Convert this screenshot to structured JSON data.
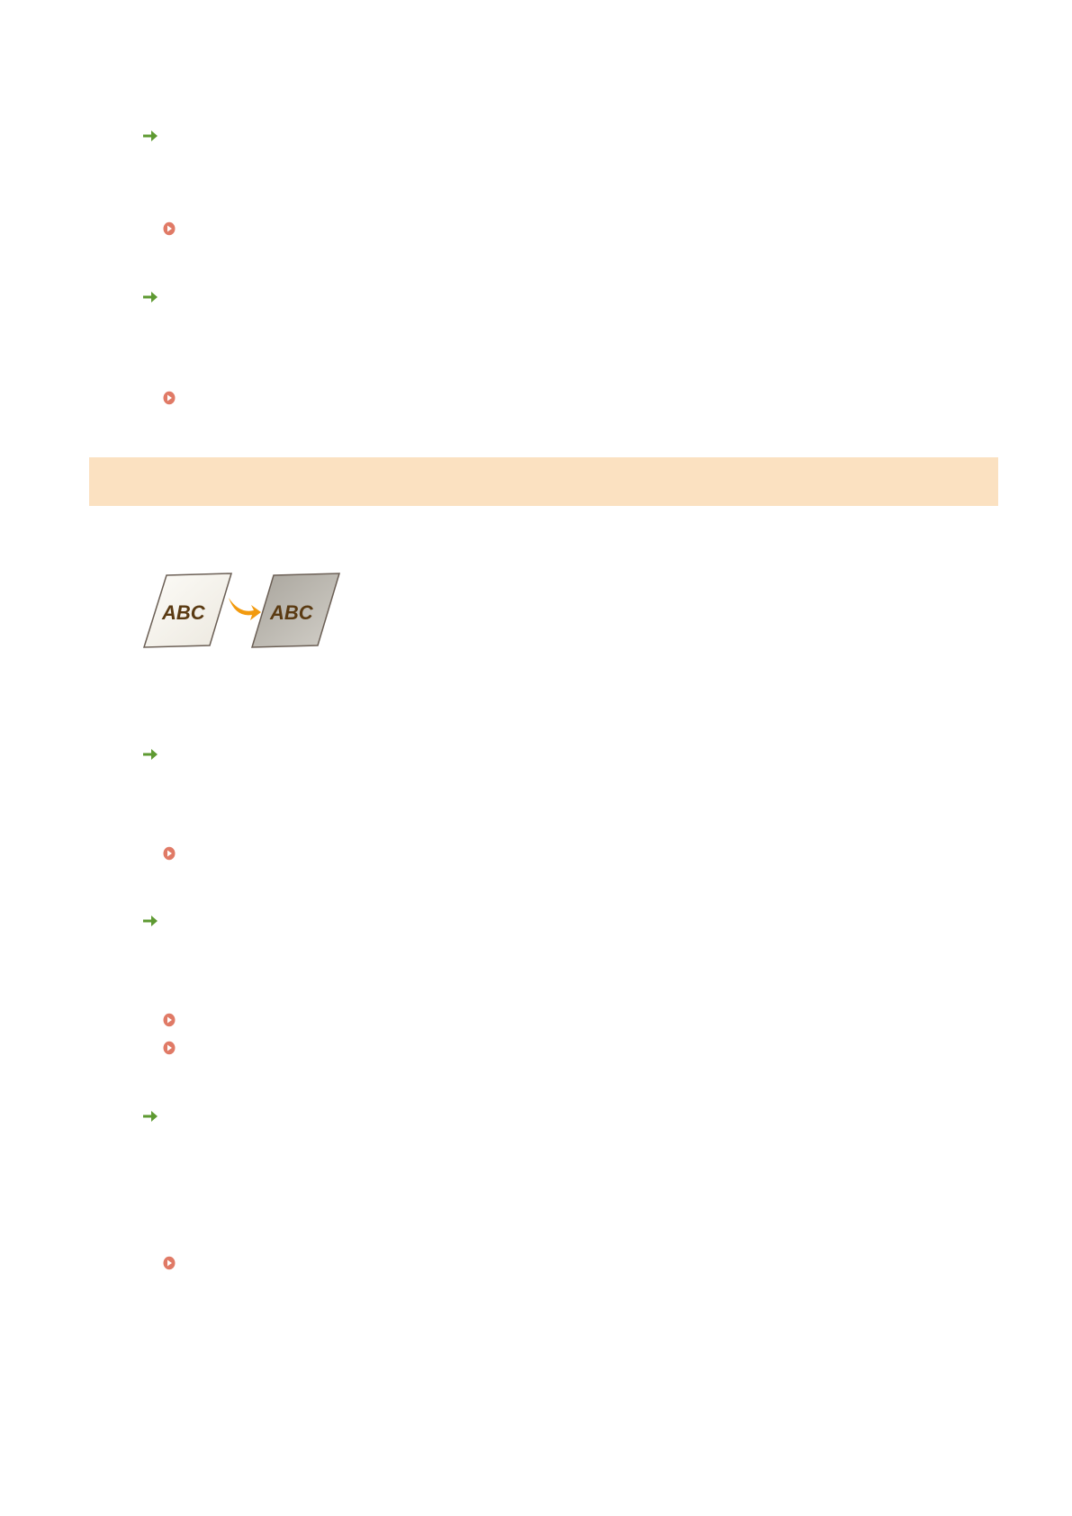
{
  "colors": {
    "link_arrow": "#5e9a32",
    "bullet": "#e07a66",
    "section_banner": "#fbe1c1",
    "illustration_arrow": "#f29a0e",
    "illustration_text": "#5a3a12"
  },
  "icons": {
    "link": "right-arrow-icon",
    "bullet": "circle-play-icon"
  },
  "illustration": {
    "before_label": "ABC",
    "after_label": "ABC"
  }
}
